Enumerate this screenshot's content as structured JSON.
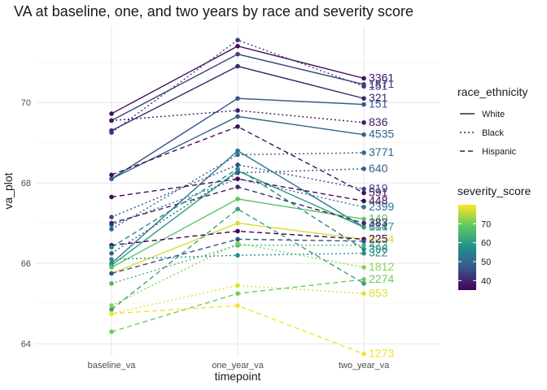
{
  "chart_data": {
    "type": "line",
    "title": "VA at baseline, one, and two years by race and severity score",
    "xlabel": "timepoint",
    "ylabel": "va_plot",
    "categories": [
      "baseline_va",
      "one_year_va",
      "two_year_va"
    ],
    "ylim": [
      63.7,
      71.9
    ],
    "yticks": [
      64,
      66,
      68,
      70
    ],
    "grid": true,
    "legend_position": "right",
    "linetype_legend": {
      "title": "race_ethnicity",
      "items": [
        {
          "label": "White",
          "dash": "solid"
        },
        {
          "label": "Black",
          "dash": "dotted"
        },
        {
          "label": "Hispanic",
          "dash": "dashed"
        }
      ]
    },
    "color_legend": {
      "title": "severity_score",
      "range": [
        35,
        80
      ],
      "ticks": [
        40,
        50,
        60,
        70
      ],
      "palette": [
        "#440154",
        "#3b528b",
        "#21908c",
        "#5dc863",
        "#fde725"
      ]
    },
    "series": [
      {
        "race": "White",
        "severity": 37,
        "values": [
          69.72,
          71.4,
          70.6
        ],
        "label": "3361"
      },
      {
        "race": "White",
        "severity": 44,
        "values": [
          69.55,
          71.2,
          70.45
        ],
        "label": "1871"
      },
      {
        "race": "White",
        "severity": 40,
        "values": [
          69.3,
          70.9,
          70.1
        ],
        "label": "321"
      },
      {
        "race": "White",
        "severity": 47,
        "values": [
          68.1,
          70.1,
          69.95
        ],
        "label": "151"
      },
      {
        "race": "White",
        "severity": 49,
        "values": [
          68.1,
          69.65,
          69.2
        ],
        "label": "4535"
      },
      {
        "race": "White",
        "severity": 53,
        "values": [
          66.0,
          68.8,
          66.9
        ],
        "label": "614"
      },
      {
        "race": "White",
        "severity": 60,
        "values": [
          65.95,
          68.3,
          66.9
        ],
        "label": "1817"
      },
      {
        "race": "White",
        "severity": 68,
        "values": [
          65.9,
          67.6,
          67.1
        ],
        "label": "140"
      },
      {
        "race": "White",
        "severity": 77,
        "values": [
          65.75,
          67.0,
          66.6
        ],
        "label": "4074"
      },
      {
        "race": "Black",
        "severity": 43,
        "values": [
          69.25,
          71.55,
          70.4
        ],
        "label": "151"
      },
      {
        "race": "Black",
        "severity": 38,
        "values": [
          69.55,
          69.8,
          69.5
        ],
        "label": "836"
      },
      {
        "race": "Black",
        "severity": 50,
        "values": [
          66.85,
          68.7,
          68.75
        ],
        "label": "3771"
      },
      {
        "race": "Black",
        "severity": 45,
        "values": [
          67.15,
          68.45,
          67.85
        ],
        "label": "819"
      },
      {
        "race": "Black",
        "severity": 52,
        "values": [
          66.95,
          68.1,
          67.4
        ],
        "label": "2399"
      },
      {
        "race": "Black",
        "severity": 48,
        "values": [
          66.25,
          68.25,
          68.35
        ],
        "label": "640"
      },
      {
        "race": "Black",
        "severity": 57,
        "values": [
          66.1,
          66.2,
          66.25
        ],
        "label": "322"
      },
      {
        "race": "Black",
        "severity": 65,
        "values": [
          65.5,
          66.45,
          66.45
        ],
        "label": "473"
      },
      {
        "race": "Black",
        "severity": 72,
        "values": [
          64.95,
          66.5,
          65.9
        ],
        "label": "1812"
      },
      {
        "race": "Black",
        "severity": 78,
        "values": [
          64.75,
          65.45,
          65.25
        ],
        "label": "853"
      },
      {
        "race": "Hispanic",
        "severity": 37,
        "values": [
          68.2,
          69.4,
          67.75
        ],
        "label": "591"
      },
      {
        "race": "Hispanic",
        "severity": 36,
        "values": [
          67.65,
          68.1,
          67.55
        ],
        "label": "448"
      },
      {
        "race": "Hispanic",
        "severity": 40,
        "values": [
          67.0,
          67.9,
          67.0
        ],
        "label": "383"
      },
      {
        "race": "Hispanic",
        "severity": 35,
        "values": [
          66.45,
          66.8,
          66.6
        ],
        "label": "225"
      },
      {
        "race": "Hispanic",
        "severity": 46,
        "values": [
          65.75,
          66.6,
          66.55
        ],
        "label": ""
      },
      {
        "race": "Hispanic",
        "severity": 56,
        "values": [
          66.4,
          68.35,
          66.35
        ],
        "label": "396"
      },
      {
        "race": "Hispanic",
        "severity": 61,
        "values": [
          64.85,
          67.35,
          65.5
        ],
        "label": ""
      },
      {
        "race": "Hispanic",
        "severity": 70,
        "values": [
          64.3,
          65.25,
          65.6
        ],
        "label": "2274"
      },
      {
        "race": "Hispanic",
        "severity": 79,
        "values": [
          64.75,
          64.95,
          63.75
        ],
        "label": "1273"
      }
    ]
  }
}
